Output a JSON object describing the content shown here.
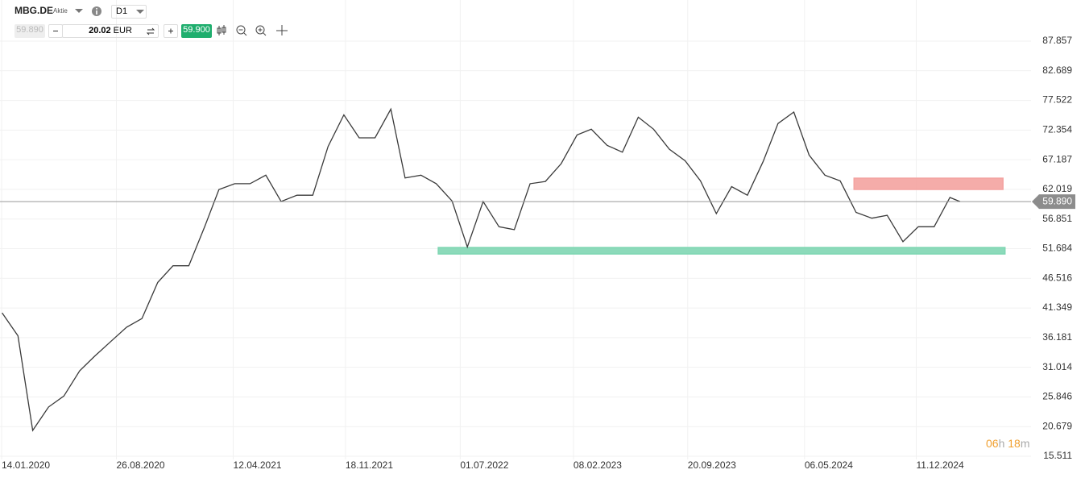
{
  "toolbar": {
    "symbol": "MBG.DE",
    "kind": "Aktie",
    "timeframe": "D1",
    "bid": "59.890",
    "volume": "20.02",
    "currency": "EUR",
    "ask": "59.900"
  },
  "timer": {
    "hours": "06",
    "hours_unit": "h",
    "minutes": "18",
    "minutes_unit": "m"
  },
  "chart_data": {
    "type": "line",
    "color": "#3a3a3a",
    "x": [
      "15.01.2020",
      "15.02.2020",
      "15.03.2020",
      "15.04.2020",
      "15.05.2020",
      "15.06.2020",
      "15.07.2020",
      "15.08.2020",
      "15.09.2020",
      "15.10.2020",
      "15.11.2020",
      "15.12.2020",
      "15.01.2021",
      "15.02.2021",
      "15.03.2021",
      "15.04.2021",
      "15.05.2021",
      "15.06.2021",
      "15.07.2021",
      "15.08.2021",
      "15.09.2021",
      "15.10.2021",
      "15.11.2021",
      "15.12.2021",
      "15.01.2022",
      "15.02.2022",
      "15.03.2022",
      "15.04.2022",
      "15.05.2022",
      "15.06.2022",
      "15.07.2022",
      "15.08.2022",
      "15.09.2022",
      "15.10.2022",
      "15.11.2022",
      "15.12.2022",
      "15.01.2023",
      "15.02.2023",
      "15.03.2023",
      "15.04.2023",
      "15.05.2023",
      "15.06.2023",
      "15.07.2023",
      "15.08.2023",
      "15.09.2023",
      "15.10.2023",
      "15.11.2023",
      "15.12.2023",
      "15.01.2024",
      "15.02.2024",
      "15.03.2024",
      "15.04.2024",
      "15.05.2024",
      "15.06.2024",
      "15.07.2024",
      "15.08.2024",
      "15.09.2024",
      "15.10.2024",
      "15.11.2024",
      "15.12.2024",
      "15.01.2025",
      "15.02.2025",
      "07.03.2025"
    ],
    "values": [
      40.5,
      36.5,
      20,
      24.1,
      26,
      30.4,
      33,
      35.5,
      38,
      39.5,
      45.8,
      48.7,
      48.7,
      55.5,
      62,
      63,
      63,
      64.5,
      59.9,
      61,
      61,
      69.5,
      75,
      71,
      71,
      76,
      64,
      64.5,
      63,
      60,
      52,
      59.9,
      55.5,
      55,
      63,
      63.4,
      66.5,
      71.5,
      72.5,
      69.7,
      68.5,
      74.6,
      72.5,
      69,
      67,
      63.5,
      57.8,
      62.5,
      61,
      66.9,
      73.5,
      75.5,
      68,
      64.5,
      63.5,
      58,
      57,
      57.5,
      52.9,
      55.5,
      55.5,
      60.6,
      59.89
    ],
    "xlim": [
      "14.01.2020",
      "24.07.2025"
    ],
    "xticks": [
      "14.01.2020",
      "26.08.2020",
      "12.04.2021",
      "18.11.2021",
      "01.07.2022",
      "08.02.2023",
      "20.09.2023",
      "06.05.2024",
      "11.12.2024"
    ],
    "ylim": [
      15.511,
      87.857
    ],
    "yticks": [
      87.857,
      82.689,
      77.522,
      72.354,
      67.187,
      62.019,
      56.851,
      51.684,
      46.516,
      41.349,
      36.181,
      31.014,
      25.846,
      20.679,
      15.511
    ],
    "grid": true,
    "current_price": {
      "value": 59.89,
      "label": "59.890"
    },
    "zones": [
      {
        "color": "#f4a3a0",
        "ylim": [
          62.01,
          63.97
        ],
        "xlim": [
          "11.08.2024",
          "30.05.2025"
        ]
      },
      {
        "color": "#7fd6b3",
        "ylim": [
          50.76,
          51.89
        ],
        "xlim": [
          "19.05.2022",
          "03.06.2025"
        ]
      }
    ]
  }
}
